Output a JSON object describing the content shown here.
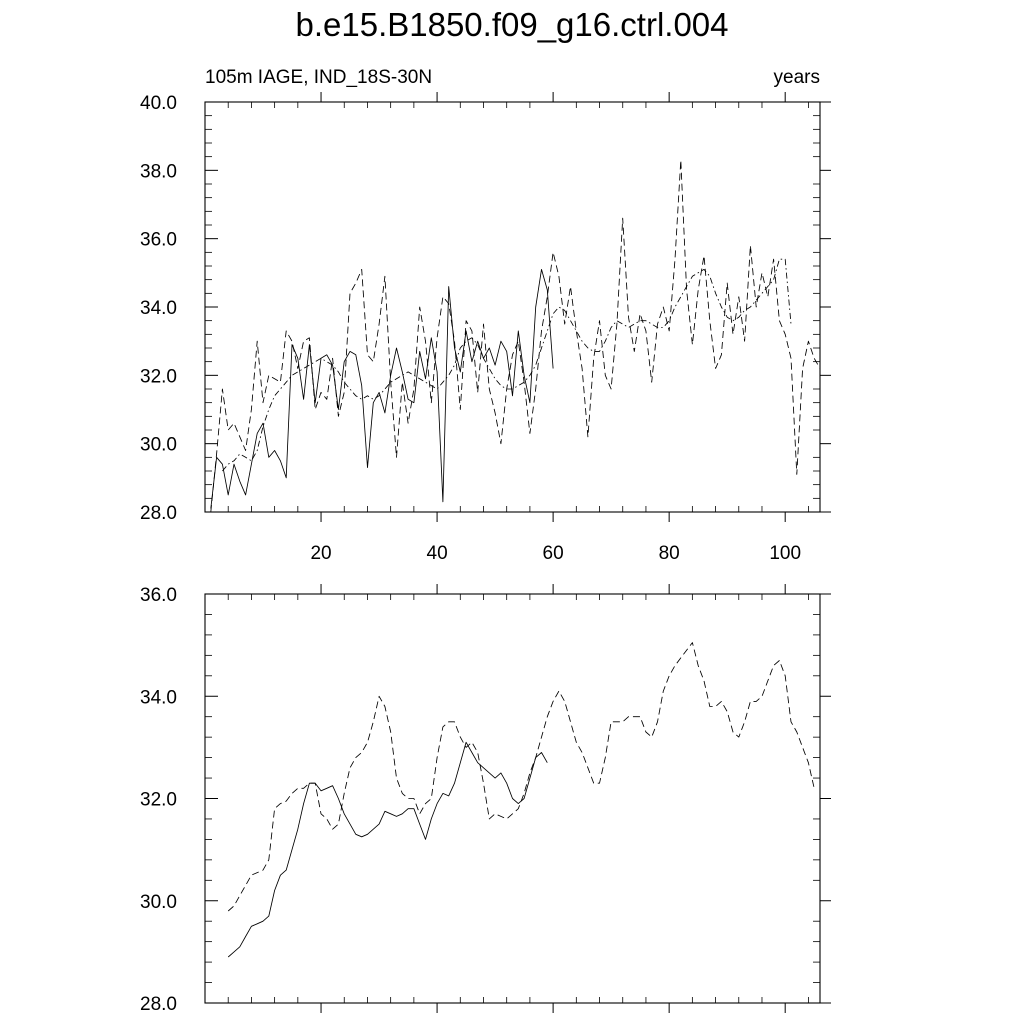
{
  "title": "b.e15.B1850.f09_g16.ctrl.004",
  "chart_data": [
    {
      "type": "line",
      "left_label": "105m IAGE, IND_18S-30N",
      "right_label": "years",
      "xlim": [
        0,
        106
      ],
      "ylim": [
        28,
        40
      ],
      "x_ticks": [
        20,
        40,
        60,
        80,
        100
      ],
      "x_tick_labels": [
        "20",
        "40",
        "60",
        "80",
        "100"
      ],
      "y_ticks": [
        28,
        30,
        32,
        34,
        36,
        38,
        40
      ],
      "y_tick_labels": [
        "28.0",
        "30.0",
        "32.0",
        "34.0",
        "36.0",
        "38.0",
        "40.0"
      ],
      "series": [
        {
          "style": "solid",
          "x_start": 1,
          "values": [
            28.1,
            29.6,
            29.4,
            28.5,
            29.4,
            28.9,
            28.5,
            29.4,
            30.3,
            30.6,
            29.6,
            29.8,
            29.5,
            29.0,
            32.9,
            32.5,
            31.3,
            32.9,
            31.2,
            32.5,
            32.6,
            32.3,
            31.0,
            32.4,
            32.7,
            32.6,
            31.7,
            29.3,
            31.2,
            31.5,
            30.9,
            32.0,
            32.8,
            32.1,
            31.3,
            31.2,
            32.7,
            31.9,
            33.1,
            32.1,
            28.3,
            34.6,
            32.8,
            32.1,
            33.3,
            32.4,
            33.0,
            32.5,
            32.8,
            32.3,
            33.0,
            32.7,
            31.4,
            33.3,
            32.0,
            31.2,
            34.0,
            35.1,
            34.5,
            32.2
          ]
        },
        {
          "style": "dashed",
          "x_start": 1,
          "values": [
            28.0,
            29.7,
            31.6,
            30.4,
            30.6,
            30.2,
            29.8,
            31.0,
            33.0,
            31.2,
            32.0,
            31.9,
            31.8,
            33.3,
            33.0,
            32.2,
            33.0,
            33.1,
            31.0,
            31.5,
            31.3,
            32.5,
            30.8,
            31.5,
            34.4,
            34.7,
            35.1,
            32.6,
            32.4,
            33.5,
            34.9,
            31.8,
            29.6,
            31.8,
            30.6,
            31.6,
            34.0,
            33.0,
            31.2,
            33.1,
            34.3,
            34.1,
            33.0,
            31.0,
            33.6,
            33.3,
            31.5,
            33.5,
            31.6,
            30.9,
            30.0,
            31.6,
            32.6,
            33.0,
            31.8,
            30.3,
            31.6,
            33.3,
            34.3,
            35.6,
            34.9,
            33.5,
            34.6,
            33.3,
            32.2,
            30.2,
            32.5,
            33.6,
            32.0,
            31.6,
            33.5,
            36.6,
            33.7,
            32.7,
            33.8,
            33.3,
            31.8,
            33.5,
            34.0,
            33.3,
            35.4,
            38.3,
            34.5,
            32.9,
            34.5,
            35.5,
            33.6,
            32.2,
            32.6,
            34.7,
            33.2,
            34.3,
            33.0,
            35.8,
            34.0,
            35.0,
            34.3,
            35.4,
            33.6,
            33.2,
            32.5,
            29.1,
            32.2,
            33.0,
            32.5,
            32.2
          ]
        },
        {
          "style": "dash-dot",
          "x_start": 3,
          "values": [
            29.2,
            29.4,
            29.5,
            29.7,
            29.6,
            29.5,
            29.8,
            30.5,
            31.0,
            31.4,
            31.6,
            31.8,
            32.0,
            32.1,
            32.2,
            32.3,
            32.4,
            32.5,
            32.4,
            32.3,
            32.1,
            31.8,
            31.6,
            31.4,
            31.3,
            31.4,
            31.3,
            31.4,
            31.6,
            31.8,
            31.9,
            32.0,
            32.1,
            32.0,
            31.9,
            31.8,
            31.7,
            31.6,
            31.8,
            32.0,
            32.3,
            32.8,
            33.0,
            33.1,
            32.9,
            32.5,
            32.2,
            31.9,
            31.7,
            31.6,
            31.6,
            31.7,
            31.8,
            32.0,
            32.3,
            32.8,
            33.3,
            33.8,
            34.0,
            33.9,
            33.6,
            33.3,
            33.0,
            32.8,
            32.7,
            32.7,
            33.0,
            33.4,
            33.6,
            33.5,
            33.4,
            33.5,
            33.6,
            33.6,
            33.5,
            33.4,
            33.4,
            33.6,
            34.0,
            34.3,
            34.6,
            34.9,
            35.0,
            35.1,
            34.9,
            34.4,
            34.0,
            33.7,
            33.6,
            33.7,
            33.9,
            34.0,
            34.2,
            34.4,
            34.6,
            34.8,
            35.4,
            35.4,
            33.5
          ]
        }
      ]
    },
    {
      "type": "line",
      "xlim": [
        0,
        106
      ],
      "ylim": [
        28,
        36
      ],
      "x_ticks": [
        20,
        40,
        60,
        80,
        100
      ],
      "y_ticks": [
        28,
        30,
        32,
        34,
        36
      ],
      "y_tick_labels": [
        "28.0",
        "30.0",
        "32.0",
        "34.0",
        "36.0"
      ],
      "series": [
        {
          "style": "solid",
          "x_start": 4,
          "values": [
            28.9,
            29.0,
            29.1,
            29.3,
            29.5,
            29.55,
            29.6,
            29.7,
            30.2,
            30.5,
            30.6,
            31.0,
            31.4,
            31.9,
            32.3,
            32.3,
            32.15,
            32.2,
            32.25,
            32.0,
            31.7,
            31.5,
            31.3,
            31.25,
            31.3,
            31.4,
            31.5,
            31.75,
            31.7,
            31.65,
            31.7,
            31.8,
            31.8,
            31.5,
            31.2,
            31.6,
            31.9,
            32.1,
            32.05,
            32.3,
            32.7,
            33.1,
            32.9,
            32.7,
            32.6,
            32.5,
            32.4,
            32.5,
            32.3,
            32.0,
            31.9,
            32.0,
            32.4,
            32.8,
            32.9,
            32.7
          ]
        },
        {
          "style": "dashed",
          "x_start": 4,
          "values": [
            29.8,
            29.9,
            30.1,
            30.3,
            30.5,
            30.55,
            30.6,
            30.8,
            31.8,
            31.9,
            31.95,
            32.1,
            32.2,
            32.2,
            32.3,
            32.3,
            31.7,
            31.6,
            31.4,
            31.5,
            32.1,
            32.6,
            32.8,
            32.9,
            33.1,
            33.5,
            34.0,
            33.8,
            33.3,
            32.4,
            32.1,
            32.0,
            32.0,
            31.7,
            31.9,
            32.0,
            32.8,
            33.4,
            33.5,
            33.5,
            33.2,
            33.0,
            33.1,
            32.9,
            32.3,
            31.6,
            31.7,
            31.65,
            31.6,
            31.7,
            31.8,
            32.1,
            32.5,
            32.8,
            33.2,
            33.6,
            33.9,
            34.1,
            33.9,
            33.5,
            33.1,
            32.9,
            32.6,
            32.3,
            32.3,
            32.8,
            33.5,
            33.5,
            33.5,
            33.6,
            33.6,
            33.6,
            33.3,
            33.2,
            33.5,
            34.1,
            34.4,
            34.6,
            34.75,
            34.9,
            35.05,
            34.6,
            34.3,
            33.8,
            33.8,
            33.9,
            33.7,
            33.3,
            33.2,
            33.5,
            33.9,
            33.9,
            34.0,
            34.3,
            34.6,
            34.7,
            34.4,
            33.5,
            33.3,
            33.0,
            32.7,
            32.2
          ]
        }
      ]
    }
  ]
}
